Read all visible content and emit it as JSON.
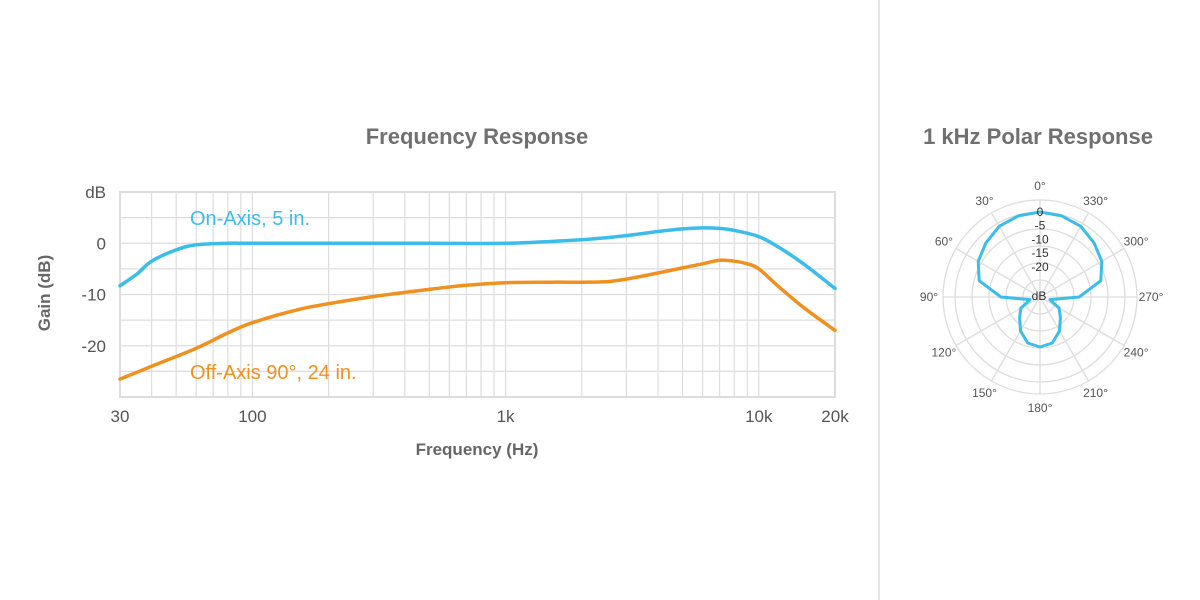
{
  "colors": {
    "on_axis": "#3cbde9",
    "off_axis": "#f0901f",
    "grid": "#dddddd",
    "divider": "#e3e3e3"
  },
  "chart_data": [
    {
      "type": "line",
      "title": "Frequency Response",
      "xlabel": "Frequency (Hz)",
      "ylabel": "Gain (dB)",
      "x_scale": "log",
      "xlim": [
        30,
        20000
      ],
      "ylim": [
        -30,
        10
      ],
      "x_ticks": [
        {
          "value": 30,
          "label": "30"
        },
        {
          "value": 100,
          "label": "100"
        },
        {
          "value": 1000,
          "label": "1k"
        },
        {
          "value": 10000,
          "label": "10k"
        },
        {
          "value": 20000,
          "label": "20k"
        }
      ],
      "y_ticks": [
        {
          "value": 10,
          "label": "dB"
        },
        {
          "value": 0,
          "label": "0"
        },
        {
          "value": -10,
          "label": "-10"
        },
        {
          "value": -20,
          "label": "-20"
        }
      ],
      "grid": true,
      "series": [
        {
          "name": "On-Axis, 5 in.",
          "color": "#3cbde9",
          "x": [
            30,
            35,
            40,
            50,
            60,
            80,
            100,
            200,
            500,
            1000,
            2000,
            3000,
            4000,
            5000,
            6000,
            7000,
            8000,
            10000,
            12000,
            15000,
            20000
          ],
          "y": [
            -8.3,
            -6,
            -3.5,
            -1.3,
            -0.3,
            0,
            0,
            0,
            0,
            0,
            0.7,
            1.5,
            2.3,
            2.8,
            3,
            2.9,
            2.5,
            1.3,
            -0.8,
            -4,
            -8.8
          ]
        },
        {
          "name": "Off-Axis 90°, 24 in.",
          "color": "#f0901f",
          "x": [
            30,
            40,
            60,
            80,
            100,
            150,
            200,
            300,
            500,
            700,
            1000,
            1500,
            2000,
            2500,
            3000,
            4000,
            5000,
            6000,
            7000,
            8000,
            9000,
            10000,
            12000,
            15000,
            20000
          ],
          "y": [
            -26.5,
            -24,
            -20.5,
            -17.5,
            -15.5,
            -13,
            -11.8,
            -10.4,
            -9,
            -8.2,
            -7.7,
            -7.6,
            -7.6,
            -7.5,
            -7,
            -5.8,
            -4.8,
            -4,
            -3.3,
            -3.5,
            -4,
            -5,
            -8.5,
            -12.5,
            -17
          ]
        }
      ]
    },
    {
      "type": "polar",
      "title": "1 kHz Polar Response",
      "angle_labels": [
        "0°",
        "30°",
        "60°",
        "90°",
        "120°",
        "150°",
        "180°",
        "210°",
        "240°",
        "270°",
        "300°",
        "330°"
      ],
      "rings": [
        0,
        -5,
        -10,
        -15,
        -20
      ],
      "center_label": "dB",
      "range_db": [
        -25,
        0
      ],
      "series": [
        {
          "name": "1 kHz",
          "color": "#3cbde9",
          "angles": [
            0,
            15,
            30,
            45,
            60,
            75,
            90,
            105,
            120,
            135,
            150,
            165,
            180,
            195,
            210,
            225,
            240,
            255,
            270,
            285,
            300,
            315,
            330,
            345,
            360
          ],
          "db": [
            0,
            -0.3,
            -1,
            -2.5,
            -4,
            -6.5,
            -13.5,
            -22,
            -18.5,
            -16.5,
            -13.5,
            -11,
            -10.3,
            -11,
            -13.5,
            -16.5,
            -18.5,
            -22,
            -13.5,
            -6.5,
            -4,
            -2.5,
            -1,
            -0.3,
            0
          ]
        }
      ]
    }
  ]
}
